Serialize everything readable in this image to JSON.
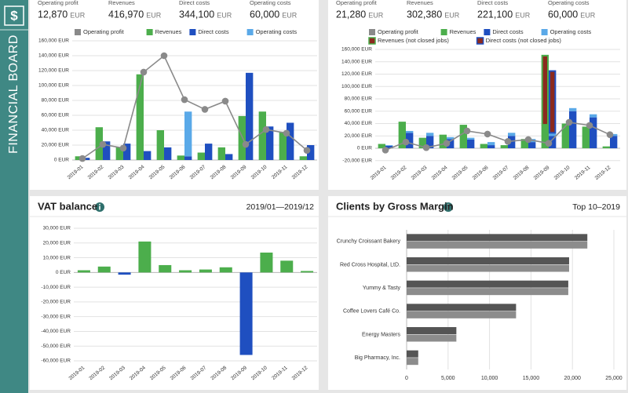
{
  "sidebar": {
    "icon": "$",
    "title": "FINANCIAL BOARD"
  },
  "chart_data": [
    {
      "type": "bar",
      "kpis": [
        {
          "label": "Operating profit",
          "value": "12,870",
          "unit": "EUR"
        },
        {
          "label": "Revenues",
          "value": "416,970",
          "unit": "EUR"
        },
        {
          "label": "Direct costs",
          "value": "344,100",
          "unit": "EUR"
        },
        {
          "label": "Operating costs",
          "value": "60,000",
          "unit": "EUR"
        }
      ],
      "categories": [
        "2019-01",
        "2019-02",
        "2019-03",
        "2019-04",
        "2019-05",
        "2019-06",
        "2019-07",
        "2019-08",
        "2019-09",
        "2019-10",
        "2019-11",
        "2019-12"
      ],
      "series": [
        {
          "name": "Operating profit",
          "type": "line",
          "color": "#8a8a8a",
          "values": [
            2000,
            21000,
            16000,
            118000,
            140000,
            81000,
            68000,
            79000,
            21000,
            41000,
            36000,
            13000
          ]
        },
        {
          "name": "Revenues",
          "type": "bar",
          "stack": "revenue",
          "color": "#4cae4c",
          "values": [
            5000,
            44000,
            17000,
            115000,
            40000,
            6000,
            10000,
            17000,
            59000,
            65000,
            38000,
            5000
          ]
        },
        {
          "name": "Direct costs",
          "type": "bar",
          "stack": "cost",
          "color": "#1f4fc0",
          "values": [
            3000,
            25000,
            22000,
            12000,
            17000,
            5000,
            22000,
            8000,
            117000,
            45000,
            50000,
            20000
          ]
        },
        {
          "name": "Operating costs",
          "type": "bar",
          "stack": "cost",
          "color": "#5aa9e8",
          "values": [
            0,
            0,
            0,
            0,
            0,
            60000,
            0,
            0,
            0,
            0,
            0,
            0
          ]
        }
      ],
      "ylim": [
        0,
        160000
      ],
      "yticks": [
        {
          "value": 0,
          "label": "0 EUR"
        },
        {
          "value": 20000,
          "label": "20,000 EUR"
        },
        {
          "value": 40000,
          "label": "40,000 EUR"
        },
        {
          "value": 60000,
          "label": "60,000 EUR"
        },
        {
          "value": 80000,
          "label": "80,000 EUR"
        },
        {
          "value": 100000,
          "label": "100,000 EUR"
        },
        {
          "value": 120000,
          "label": "120,000 EUR"
        },
        {
          "value": 140000,
          "label": "140,000 EUR"
        },
        {
          "value": 160000,
          "label": "160,000 EUR"
        }
      ],
      "grid": true
    },
    {
      "type": "bar",
      "kpis": [
        {
          "label": "Operating profit",
          "value": "21,280",
          "unit": "EUR"
        },
        {
          "label": "Revenues",
          "value": "302,380",
          "unit": "EUR"
        },
        {
          "label": "Direct costs",
          "value": "221,100",
          "unit": "EUR"
        },
        {
          "label": "Operating costs",
          "value": "60,000",
          "unit": "EUR"
        }
      ],
      "categories": [
        "2019-01",
        "2019-02",
        "2019-03",
        "2019-04",
        "2019-05",
        "2019-06",
        "2019-07",
        "2019-08",
        "2019-09",
        "2019-10",
        "2019-11",
        "2019-12"
      ],
      "series": [
        {
          "name": "Operating profit",
          "type": "line",
          "color": "#8a8a8a",
          "values": [
            -3000,
            10000,
            1000,
            8000,
            28000,
            23000,
            11000,
            14000,
            8000,
            42000,
            37000,
            22000
          ]
        },
        {
          "name": "Revenues",
          "type": "bar",
          "stack": "revenue",
          "color": "#4cae4c",
          "values": [
            7000,
            43000,
            17000,
            22000,
            38000,
            7000,
            5000,
            15000,
            38000,
            40000,
            35000,
            3000
          ]
        },
        {
          "name": "Direct costs",
          "type": "bar",
          "stack": "cost",
          "color": "#1f4fc0",
          "values": [
            4000,
            25000,
            20000,
            15000,
            14000,
            5000,
            20000,
            10000,
            20000,
            60000,
            50000,
            20000
          ]
        },
        {
          "name": "Operating costs",
          "type": "bar",
          "stack": "cost",
          "color": "#5aa9e8",
          "values": [
            1000,
            3000,
            5000,
            3000,
            3000,
            5000,
            5000,
            5000,
            5000,
            5000,
            5000,
            3000
          ]
        },
        {
          "name": "Revenues (not closed jobs)",
          "type": "bar",
          "stack": "revenue",
          "color": "#8b2a1e",
          "border": "#4cae4c",
          "values": [
            null,
            null,
            null,
            null,
            null,
            null,
            null,
            null,
            112000,
            null,
            null,
            null
          ]
        },
        {
          "name": "Direct costs (not closed jobs)",
          "type": "bar",
          "stack": "cost",
          "color": "#8b2a1e",
          "border": "#1f4fc0",
          "values": [
            null,
            null,
            null,
            null,
            null,
            null,
            null,
            null,
            100000,
            null,
            null,
            null
          ]
        }
      ],
      "ylim": [
        -20000,
        160000
      ],
      "yticks": [
        {
          "value": -20000,
          "label": "-20,000 EUR"
        },
        {
          "value": 0,
          "label": "0 EUR"
        },
        {
          "value": 20000,
          "label": "20,000 EUR"
        },
        {
          "value": 40000,
          "label": "40,000 EUR"
        },
        {
          "value": 60000,
          "label": "60,000 EUR"
        },
        {
          "value": 80000,
          "label": "80,000 EUR"
        },
        {
          "value": 100000,
          "label": "100,000 EUR"
        },
        {
          "value": 120000,
          "label": "120,000 EUR"
        },
        {
          "value": 140000,
          "label": "140,000 EUR"
        },
        {
          "value": 160000,
          "label": "160,000 EUR"
        }
      ],
      "grid": true
    },
    {
      "type": "bar",
      "title": "VAT balance",
      "period": "2019/01—2019/12",
      "categories": [
        "2019-01",
        "2019-02",
        "2019-03",
        "2019-04",
        "2019-05",
        "2019-06",
        "2019-07",
        "2019-08",
        "2019-09",
        "2019-10",
        "2019-11",
        "2019-12"
      ],
      "values": [
        1500,
        4000,
        -1500,
        21000,
        5000,
        1500,
        2000,
        3500,
        -56000,
        13500,
        8000,
        1000
      ],
      "positive_color": "#4cae4c",
      "negative_color": "#1f4fc0",
      "ylim": [
        -60000,
        30000
      ],
      "yticks": [
        {
          "value": -60000,
          "label": "-60,000 EUR"
        },
        {
          "value": -50000,
          "label": "-50,000 EUR"
        },
        {
          "value": -40000,
          "label": "-40,000 EUR"
        },
        {
          "value": -30000,
          "label": "-30,000 EUR"
        },
        {
          "value": -20000,
          "label": "-20,000 EUR"
        },
        {
          "value": -10000,
          "label": "-10,000 EUR"
        },
        {
          "value": 0,
          "label": "0 EUR"
        },
        {
          "value": 10000,
          "label": "10,000 EUR"
        },
        {
          "value": 20000,
          "label": "20,000 EUR"
        },
        {
          "value": 30000,
          "label": "30,000 EUR"
        }
      ],
      "grid": true
    },
    {
      "type": "hbar",
      "title": "Clients by Gross Margin",
      "period": "Top 10–2019",
      "categories": [
        "Crunchy Croissant Bakery",
        "Red Cross Hospital, LtD.",
        "Yummy & Tasty",
        "Coffee Lovers Café Co.",
        "Energy Masters",
        "Big Pharmacy, Inc."
      ],
      "series": [
        {
          "color": "#555555",
          "values": [
            21800,
            19600,
            19500,
            13200,
            6000,
            1400
          ]
        },
        {
          "color": "#8c8c8c",
          "values": [
            21800,
            19600,
            19500,
            13200,
            6000,
            1400
          ]
        }
      ],
      "xlim": [
        0,
        25000
      ],
      "xticks": [
        0,
        {
          "value": 5000,
          "label": "5,000"
        },
        {
          "value": 10000,
          "label": "10,000"
        },
        {
          "value": 15000,
          "label": "15,000"
        },
        {
          "value": 20000,
          "label": "20,000"
        },
        {
          "value": 25000,
          "label": "25,000"
        }
      ],
      "grid": true
    }
  ]
}
